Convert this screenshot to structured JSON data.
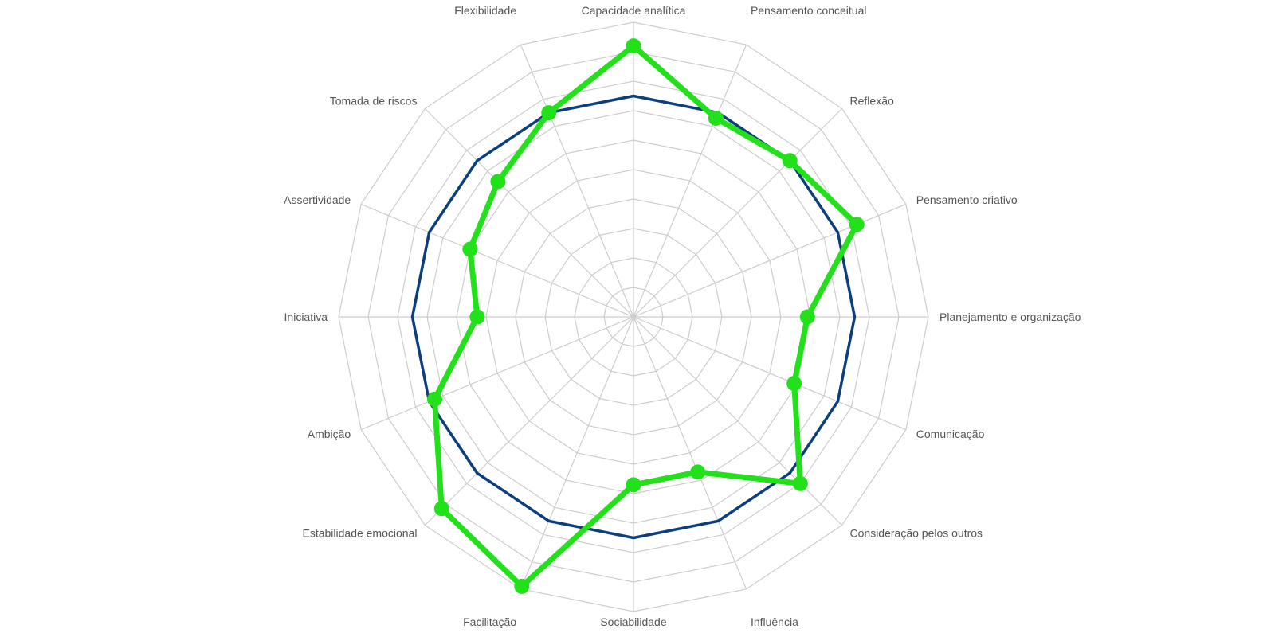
{
  "chart_data": {
    "type": "radar",
    "categories": [
      "Capacidade analítica",
      "Pensamento conceitual",
      "Reflexão",
      "Pensamento criativo",
      "Planejamento e organização",
      "Comunicação",
      "Consideração pelos outros",
      "Influência",
      "Sociabilidade",
      "Facilitação",
      "Estabilidade emocional",
      "Ambição",
      "Iniciativa",
      "Assertividade",
      "Tomada de riscos",
      "Flexibilidade"
    ],
    "rlim": [
      0,
      10
    ],
    "grid": true,
    "series": [
      {
        "color": "#0b3f7e",
        "values": [
          7.5,
          7.5,
          7.5,
          7.5,
          7.5,
          7.5,
          7.5,
          7.5,
          7.5,
          7.5,
          7.5,
          7.5,
          7.5,
          7.5,
          7.5,
          7.5
        ]
      },
      {
        "color": "#22e01a",
        "values": [
          9.2,
          7.3,
          7.5,
          8.2,
          5.9,
          5.9,
          8.0,
          5.7,
          5.7,
          9.9,
          9.2,
          7.3,
          5.3,
          6.0,
          6.5,
          7.5
        ]
      }
    ]
  }
}
